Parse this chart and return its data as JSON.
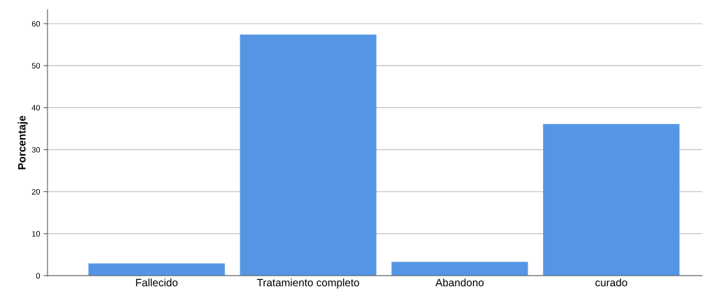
{
  "chart_data": {
    "type": "bar",
    "ylabel": "Porcentaje",
    "categories": [
      "Fallecido",
      "Tratamiento completo",
      "Abandono",
      "curado"
    ],
    "values": [
      2.9,
      57.4,
      3.3,
      36.1
    ],
    "color": "#5596e4",
    "ylim": [
      0,
      63.3
    ],
    "yticks": [
      0,
      10,
      20,
      30,
      40,
      50,
      60
    ],
    "grid": "y"
  }
}
